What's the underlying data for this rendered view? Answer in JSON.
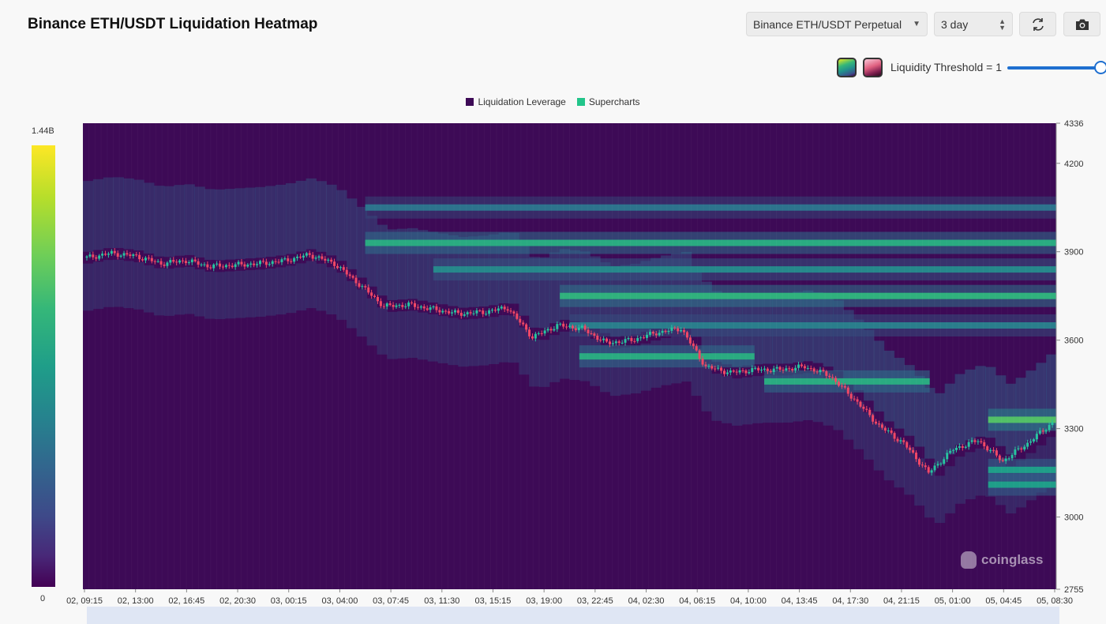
{
  "header": {
    "title": "Binance ETH/USDT Liquidation Heatmap",
    "symbol_select": "Binance ETH/USDT Perpetual",
    "range_select": "3 day",
    "refresh_icon": "refresh-icon",
    "camera_icon": "camera-icon"
  },
  "controls": {
    "threshold_label": "Liquidity Threshold = 1",
    "threshold_value": 1,
    "palette_1": "viridis",
    "palette_2": "pink"
  },
  "colorbar": {
    "max_label": "1.44B",
    "min_label": "0"
  },
  "watermark": {
    "brand": "coinglass"
  },
  "chart_data": {
    "type": "heatmap",
    "title": "Binance ETH/USDT Liquidation Heatmap",
    "legend": [
      {
        "name": "Liquidation Leverage",
        "color": "#3d0a56"
      },
      {
        "name": "Supercharts",
        "color": "#22c58a"
      }
    ],
    "legend_position": "top-center",
    "y_axis_position": "right",
    "ylim": [
      2755,
      4336
    ],
    "yticks": [
      4336,
      4200,
      3900,
      3600,
      3300,
      3000,
      2755
    ],
    "x_ticks": [
      "02, 09:15",
      "02, 13:00",
      "02, 16:45",
      "02, 20:30",
      "03, 00:15",
      "03, 04:00",
      "03, 07:45",
      "03, 11:30",
      "03, 15:15",
      "03, 19:00",
      "03, 22:45",
      "04, 02:30",
      "04, 06:15",
      "04, 10:00",
      "04, 13:45",
      "04, 17:30",
      "04, 21:15",
      "05, 01:00",
      "05, 04:45",
      "05, 08:30"
    ],
    "color_scale_max": "1.44B",
    "color_scale_min": "0",
    "price": [
      3880,
      3895,
      3885,
      3860,
      3870,
      3850,
      3855,
      3860,
      3870,
      3890,
      3860,
      3790,
      3715,
      3720,
      3705,
      3690,
      3695,
      3710,
      3610,
      3650,
      3640,
      3590,
      3600,
      3625,
      3640,
      3510,
      3490,
      3500,
      3500,
      3510,
      3480,
      3400,
      3310,
      3250,
      3150,
      3230,
      3260,
      3190,
      3250,
      3320
    ],
    "liquidity_levels": [
      {
        "price": 3930,
        "start": 0.29,
        "end": 1.0,
        "intensity": 0.7
      },
      {
        "price": 3750,
        "start": 0.49,
        "end": 1.0,
        "intensity": 0.75
      },
      {
        "price": 3840,
        "start": 0.36,
        "end": 1.0,
        "intensity": 0.5
      },
      {
        "price": 4050,
        "start": 0.29,
        "end": 1.0,
        "intensity": 0.4
      },
      {
        "price": 3650,
        "start": 0.5,
        "end": 1.0,
        "intensity": 0.45
      },
      {
        "price": 3545,
        "start": 0.51,
        "end": 0.69,
        "intensity": 0.7
      },
      {
        "price": 3460,
        "start": 0.7,
        "end": 0.87,
        "intensity": 0.7
      },
      {
        "price": 3330,
        "start": 0.93,
        "end": 1.0,
        "intensity": 0.85
      },
      {
        "price": 3160,
        "start": 0.93,
        "end": 1.0,
        "intensity": 0.6
      },
      {
        "price": 3110,
        "start": 0.93,
        "end": 1.0,
        "intensity": 0.6
      }
    ]
  }
}
